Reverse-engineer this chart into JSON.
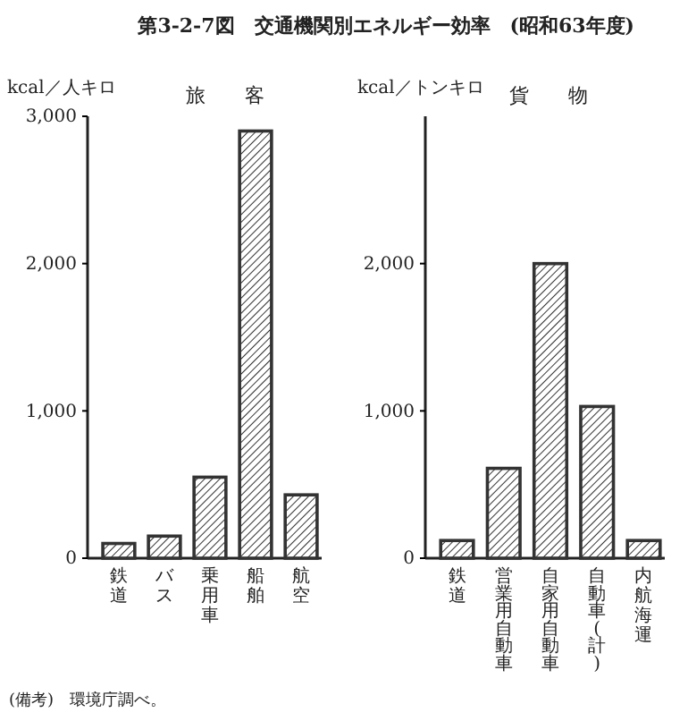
{
  "chart_data": [
    {
      "type": "bar",
      "title": "第3-2-7図　交通機関別エネルギー効率　(昭和63年度)",
      "subtitle": "旅客",
      "ylabel": "kcal／人キロ",
      "categories": [
        "鉄道",
        "バス",
        "乗用車",
        "船舶",
        "航空"
      ],
      "values": [
        100,
        150,
        550,
        2900,
        430
      ],
      "color": "#333333",
      "ylim": [
        0,
        3000
      ],
      "yticks": [
        0,
        {
          "value": 1000,
          "label": "1,000"
        },
        {
          "value": 2000,
          "label": "2,000"
        },
        {
          "value": 3000,
          "label": "3,000"
        }
      ],
      "annotations": [
        "(備考)　環境庁調べ。"
      ]
    },
    {
      "type": "bar",
      "subtitle": "貨物",
      "ylabel": "kcal／トンキロ",
      "categories": [
        "鉄道",
        "営業用自動車",
        "自家用自動車",
        "自動車(計)",
        "内航海運"
      ],
      "values": [
        120,
        610,
        2000,
        1030,
        120
      ],
      "color": "#333333",
      "ylim": [
        0,
        3000
      ],
      "yticks": [
        0,
        {
          "value": 1000,
          "label": "1,000"
        },
        {
          "value": 2000,
          "label": "2,000"
        }
      ]
    }
  ]
}
